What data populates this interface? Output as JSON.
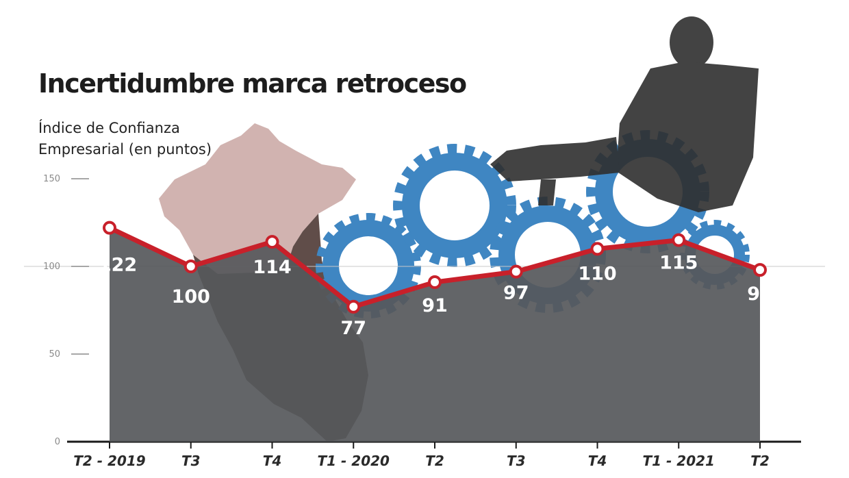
{
  "title": "Incertidumbre marca retroceso",
  "subtitle_line1": "Índice de Confianza",
  "subtitle_line2": "Empresarial (en puntos)",
  "colors": {
    "line": "#c8202a",
    "area": "#56585b",
    "gear": "#3f86c2",
    "map_light": "#c9a6a2",
    "map_dark": "#4a3430",
    "figure": "#2f2f2f"
  },
  "illustrations": [
    "peru-map",
    "gears",
    "seated-businessman"
  ],
  "chart_data": {
    "type": "area",
    "title": "Incertidumbre marca retroceso",
    "ylabel": "Índice de Confianza Empresarial (en puntos)",
    "xlabel": "",
    "categories": [
      "T2 - 2019",
      "T3",
      "T4",
      "T1 - 2020",
      "T2",
      "T3",
      "T4",
      "T1 - 2021",
      "T2"
    ],
    "series": [
      {
        "values": [
          122,
          100,
          114,
          77,
          91,
          97,
          110,
          115,
          98
        ]
      }
    ],
    "data_labels": [
      "122",
      "100",
      "114",
      "77",
      "91",
      "97",
      "110",
      "115",
      "98"
    ],
    "y_ticks": [
      "0",
      "50",
      "100",
      "150"
    ],
    "ylim": [
      0,
      150
    ],
    "reference_line": 100,
    "grid": false,
    "legend": "none"
  }
}
